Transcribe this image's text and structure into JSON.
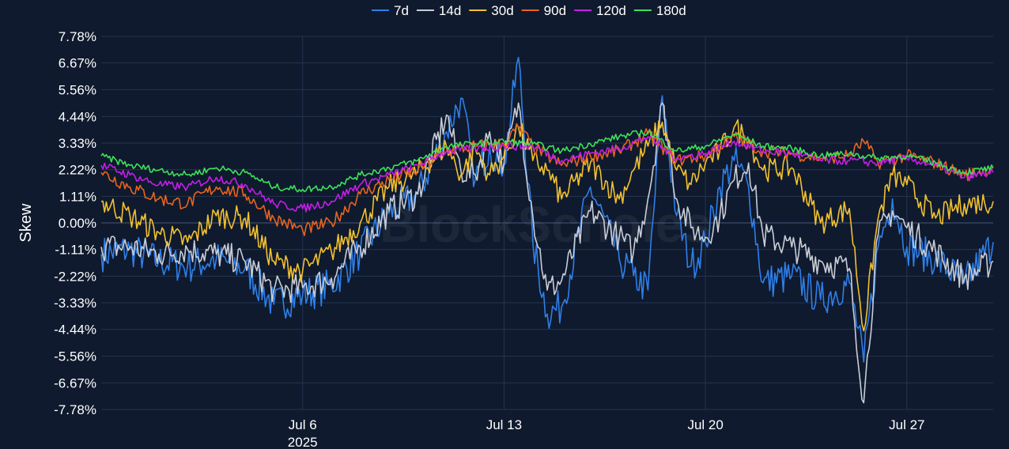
{
  "chart_data": {
    "type": "line",
    "title": "",
    "xlabel": "",
    "ylabel": "Skew",
    "watermark": "BlockScholes",
    "x_range": [
      "2025-06-29",
      "2025-07-30"
    ],
    "x_ticks": [
      {
        "date": "2025-07-06",
        "label": "Jul 6",
        "sub": "2025"
      },
      {
        "date": "2025-07-13",
        "label": "Jul 13",
        "sub": ""
      },
      {
        "date": "2025-07-20",
        "label": "Jul 20",
        "sub": ""
      },
      {
        "date": "2025-07-27",
        "label": "Jul 27",
        "sub": ""
      }
    ],
    "ylim": [
      -7.78,
      7.78
    ],
    "y_ticks": [
      7.78,
      6.67,
      5.56,
      4.44,
      3.33,
      2.22,
      1.11,
      0.0,
      -1.11,
      -2.22,
      -3.33,
      -4.44,
      -5.56,
      -6.67,
      -7.78
    ],
    "y_tick_labels": [
      "7.78%",
      "6.67%",
      "5.56%",
      "4.44%",
      "3.33%",
      "2.22%",
      "1.11%",
      "0.00%",
      "-1.11%",
      "-2.22%",
      "-3.33%",
      "-4.44%",
      "-5.56%",
      "-6.67%",
      "-7.78%"
    ],
    "grid": true,
    "legend_position": "top-center",
    "series": [
      {
        "name": "7d",
        "color": "#2f7fe8",
        "points": [
          [
            "2025-06-29",
            -1.3
          ],
          [
            "2025-06-30",
            -1.1
          ],
          [
            "2025-07-01",
            -1.6
          ],
          [
            "2025-07-02",
            -1.8
          ],
          [
            "2025-07-03",
            -1.5
          ],
          [
            "2025-07-04",
            -1.9
          ],
          [
            "2025-07-05",
            -3.4
          ],
          [
            "2025-07-06",
            -3.0
          ],
          [
            "2025-07-07",
            -2.6
          ],
          [
            "2025-07-08",
            -1.2
          ],
          [
            "2025-07-09",
            0.4
          ],
          [
            "2025-07-10",
            1.2
          ],
          [
            "2025-07-11",
            3.8
          ],
          [
            "2025-07-11T12:00",
            5.2
          ],
          [
            "2025-07-12",
            1.8
          ],
          [
            "2025-07-12T12:00",
            3.2
          ],
          [
            "2025-07-13",
            2.4
          ],
          [
            "2025-07-13T12:00",
            6.9
          ],
          [
            "2025-07-14",
            -0.8
          ],
          [
            "2025-07-14T12:00",
            -3.8
          ],
          [
            "2025-07-15",
            -3.5
          ],
          [
            "2025-07-16",
            1.5
          ],
          [
            "2025-07-17",
            -1.5
          ],
          [
            "2025-07-17T12:00",
            -2.2
          ],
          [
            "2025-07-18",
            -2.8
          ],
          [
            "2025-07-18T12:00",
            5.3
          ],
          [
            "2025-07-19",
            0.3
          ],
          [
            "2025-07-19T12:00",
            -1.8
          ],
          [
            "2025-07-20",
            -0.8
          ],
          [
            "2025-07-20T12:00",
            1.5
          ],
          [
            "2025-07-21",
            2.6
          ],
          [
            "2025-07-21T12:00",
            1.5
          ],
          [
            "2025-07-22",
            -2.5
          ],
          [
            "2025-07-23",
            -2.2
          ],
          [
            "2025-07-24",
            -3.2
          ],
          [
            "2025-07-25",
            -2.5
          ],
          [
            "2025-07-25T12:00",
            -5.8
          ],
          [
            "2025-07-26",
            -1.0
          ],
          [
            "2025-07-26T12:00",
            1.0
          ],
          [
            "2025-07-27",
            -1.0
          ],
          [
            "2025-07-28",
            -1.5
          ],
          [
            "2025-07-29",
            -2.5
          ],
          [
            "2025-07-30",
            -0.8
          ]
        ]
      },
      {
        "name": "14d",
        "color": "#c9cdd6",
        "points": [
          [
            "2025-06-29",
            -1.0
          ],
          [
            "2025-06-30",
            -1.0
          ],
          [
            "2025-07-01",
            -1.3
          ],
          [
            "2025-07-02",
            -1.1
          ],
          [
            "2025-07-03",
            -1.3
          ],
          [
            "2025-07-04",
            -1.6
          ],
          [
            "2025-07-05",
            -2.8
          ],
          [
            "2025-07-06",
            -2.7
          ],
          [
            "2025-07-07",
            -2.3
          ],
          [
            "2025-07-08",
            -1.0
          ],
          [
            "2025-07-09",
            0.5
          ],
          [
            "2025-07-10",
            1.2
          ],
          [
            "2025-07-11",
            4.5
          ],
          [
            "2025-07-11T12:00",
            2.2
          ],
          [
            "2025-07-12",
            2.0
          ],
          [
            "2025-07-12T12:00",
            3.8
          ],
          [
            "2025-07-13",
            2.5
          ],
          [
            "2025-07-13T12:00",
            5.0
          ],
          [
            "2025-07-14",
            0.3
          ],
          [
            "2025-07-14T12:00",
            -2.8
          ],
          [
            "2025-07-15",
            -2.4
          ],
          [
            "2025-07-16",
            0.5
          ],
          [
            "2025-07-17",
            -0.6
          ],
          [
            "2025-07-17T12:00",
            -1.2
          ],
          [
            "2025-07-18",
            1.0
          ],
          [
            "2025-07-18T12:00",
            5.0
          ],
          [
            "2025-07-19",
            1.0
          ],
          [
            "2025-07-19T12:00",
            -0.2
          ],
          [
            "2025-07-20",
            -0.6
          ],
          [
            "2025-07-20T12:00",
            0.3
          ],
          [
            "2025-07-21",
            1.8
          ],
          [
            "2025-07-21T12:00",
            2.5
          ],
          [
            "2025-07-22",
            -0.5
          ],
          [
            "2025-07-23",
            -1.0
          ],
          [
            "2025-07-24",
            -1.6
          ],
          [
            "2025-07-25",
            -1.9
          ],
          [
            "2025-07-25T12:00",
            -7.5
          ],
          [
            "2025-07-26",
            -0.5
          ],
          [
            "2025-07-26T12:00",
            0.5
          ],
          [
            "2025-07-27",
            -0.2
          ],
          [
            "2025-07-28",
            -1.2
          ],
          [
            "2025-07-29",
            -2.3
          ],
          [
            "2025-07-30",
            -1.6
          ]
        ]
      },
      {
        "name": "30d",
        "color": "#f2c12e",
        "points": [
          [
            "2025-06-29",
            0.9
          ],
          [
            "2025-06-30",
            0.3
          ],
          [
            "2025-07-01",
            -0.4
          ],
          [
            "2025-07-02",
            -0.8
          ],
          [
            "2025-07-03",
            0.3
          ],
          [
            "2025-07-04",
            0.2
          ],
          [
            "2025-07-05",
            -1.6
          ],
          [
            "2025-07-06",
            -2.0
          ],
          [
            "2025-07-07",
            -1.2
          ],
          [
            "2025-07-08",
            0.0
          ],
          [
            "2025-07-09",
            1.5
          ],
          [
            "2025-07-10",
            2.1
          ],
          [
            "2025-07-11",
            3.2
          ],
          [
            "2025-07-11T12:00",
            2.0
          ],
          [
            "2025-07-12",
            3.1
          ],
          [
            "2025-07-12T12:00",
            2.0
          ],
          [
            "2025-07-13",
            2.8
          ],
          [
            "2025-07-13T12:00",
            4.0
          ],
          [
            "2025-07-14",
            2.6
          ],
          [
            "2025-07-14T12:00",
            2.2
          ],
          [
            "2025-07-15",
            1.0
          ],
          [
            "2025-07-16",
            2.5
          ],
          [
            "2025-07-17",
            1.0
          ],
          [
            "2025-07-17T12:00",
            2.2
          ],
          [
            "2025-07-18",
            3.2
          ],
          [
            "2025-07-18T12:00",
            4.2
          ],
          [
            "2025-07-19",
            2.2
          ],
          [
            "2025-07-19T12:00",
            1.6
          ],
          [
            "2025-07-20",
            2.5
          ],
          [
            "2025-07-20T12:00",
            3.0
          ],
          [
            "2025-07-21",
            4.0
          ],
          [
            "2025-07-21T12:00",
            3.5
          ],
          [
            "2025-07-22",
            2.2
          ],
          [
            "2025-07-23",
            2.3
          ],
          [
            "2025-07-24",
            0.0
          ],
          [
            "2025-07-25",
            0.6
          ],
          [
            "2025-07-25T12:00",
            -4.5
          ],
          [
            "2025-07-26",
            0.2
          ],
          [
            "2025-07-26T12:00",
            2.0
          ],
          [
            "2025-07-27",
            1.6
          ],
          [
            "2025-07-28",
            0.2
          ],
          [
            "2025-07-29",
            0.8
          ],
          [
            "2025-07-30",
            0.9
          ]
        ]
      },
      {
        "name": "90d",
        "color": "#e8641e",
        "points": [
          [
            "2025-06-29",
            2.1
          ],
          [
            "2025-06-30",
            1.5
          ],
          [
            "2025-07-01",
            1.0
          ],
          [
            "2025-07-02",
            0.8
          ],
          [
            "2025-07-03",
            1.5
          ],
          [
            "2025-07-04",
            1.2
          ],
          [
            "2025-07-05",
            0.2
          ],
          [
            "2025-07-06",
            -0.3
          ],
          [
            "2025-07-07",
            0.0
          ],
          [
            "2025-07-08",
            1.2
          ],
          [
            "2025-07-09",
            1.8
          ],
          [
            "2025-07-10",
            2.2
          ],
          [
            "2025-07-11",
            3.0
          ],
          [
            "2025-07-12",
            3.2
          ],
          [
            "2025-07-13",
            3.3
          ],
          [
            "2025-07-13T12:00",
            4.0
          ],
          [
            "2025-07-14",
            3.2
          ],
          [
            "2025-07-15",
            2.4
          ],
          [
            "2025-07-16",
            2.8
          ],
          [
            "2025-07-17",
            3.0
          ],
          [
            "2025-07-18",
            3.7
          ],
          [
            "2025-07-19",
            2.6
          ],
          [
            "2025-07-20",
            2.8
          ],
          [
            "2025-07-21",
            3.6
          ],
          [
            "2025-07-22",
            3.0
          ],
          [
            "2025-07-23",
            2.9
          ],
          [
            "2025-07-24",
            2.7
          ],
          [
            "2025-07-25",
            2.8
          ],
          [
            "2025-07-25T12:00",
            3.4
          ],
          [
            "2025-07-26",
            2.5
          ],
          [
            "2025-07-27",
            2.8
          ],
          [
            "2025-07-28",
            2.5
          ],
          [
            "2025-07-29",
            2.0
          ],
          [
            "2025-07-30",
            2.3
          ]
        ]
      },
      {
        "name": "120d",
        "color": "#c51ee8",
        "points": [
          [
            "2025-06-29",
            2.4
          ],
          [
            "2025-06-30",
            2.0
          ],
          [
            "2025-07-01",
            1.6
          ],
          [
            "2025-07-02",
            1.5
          ],
          [
            "2025-07-03",
            1.9
          ],
          [
            "2025-07-04",
            1.6
          ],
          [
            "2025-07-05",
            0.8
          ],
          [
            "2025-07-06",
            0.6
          ],
          [
            "2025-07-07",
            0.9
          ],
          [
            "2025-07-08",
            1.6
          ],
          [
            "2025-07-09",
            2.0
          ],
          [
            "2025-07-10",
            2.4
          ],
          [
            "2025-07-11",
            3.0
          ],
          [
            "2025-07-12",
            3.1
          ],
          [
            "2025-07-13",
            3.2
          ],
          [
            "2025-07-14",
            3.2
          ],
          [
            "2025-07-15",
            2.6
          ],
          [
            "2025-07-16",
            2.9
          ],
          [
            "2025-07-17",
            3.1
          ],
          [
            "2025-07-18",
            3.6
          ],
          [
            "2025-07-19",
            2.7
          ],
          [
            "2025-07-20",
            2.9
          ],
          [
            "2025-07-21",
            3.4
          ],
          [
            "2025-07-22",
            3.0
          ],
          [
            "2025-07-23",
            2.9
          ],
          [
            "2025-07-24",
            2.6
          ],
          [
            "2025-07-25",
            2.6
          ],
          [
            "2025-07-26",
            2.5
          ],
          [
            "2025-07-27",
            2.7
          ],
          [
            "2025-07-28",
            2.4
          ],
          [
            "2025-07-29",
            1.9
          ],
          [
            "2025-07-30",
            2.1
          ]
        ]
      },
      {
        "name": "180d",
        "color": "#3ee05a",
        "points": [
          [
            "2025-06-29",
            2.8
          ],
          [
            "2025-06-30",
            2.4
          ],
          [
            "2025-07-01",
            2.2
          ],
          [
            "2025-07-02",
            2.0
          ],
          [
            "2025-07-03",
            2.3
          ],
          [
            "2025-07-04",
            2.1
          ],
          [
            "2025-07-05",
            1.5
          ],
          [
            "2025-07-06",
            1.4
          ],
          [
            "2025-07-07",
            1.5
          ],
          [
            "2025-07-08",
            2.0
          ],
          [
            "2025-07-09",
            2.3
          ],
          [
            "2025-07-10",
            2.6
          ],
          [
            "2025-07-11",
            3.2
          ],
          [
            "2025-07-12",
            3.3
          ],
          [
            "2025-07-13",
            3.4
          ],
          [
            "2025-07-14",
            3.3
          ],
          [
            "2025-07-15",
            3.0
          ],
          [
            "2025-07-16",
            3.3
          ],
          [
            "2025-07-17",
            3.6
          ],
          [
            "2025-07-18",
            3.8
          ],
          [
            "2025-07-19",
            3.0
          ],
          [
            "2025-07-20",
            3.2
          ],
          [
            "2025-07-21",
            3.7
          ],
          [
            "2025-07-22",
            3.2
          ],
          [
            "2025-07-23",
            3.1
          ],
          [
            "2025-07-24",
            2.8
          ],
          [
            "2025-07-25",
            2.9
          ],
          [
            "2025-07-26",
            2.7
          ],
          [
            "2025-07-27",
            2.8
          ],
          [
            "2025-07-28",
            2.5
          ],
          [
            "2025-07-29",
            2.1
          ],
          [
            "2025-07-30",
            2.3
          ]
        ]
      }
    ]
  }
}
